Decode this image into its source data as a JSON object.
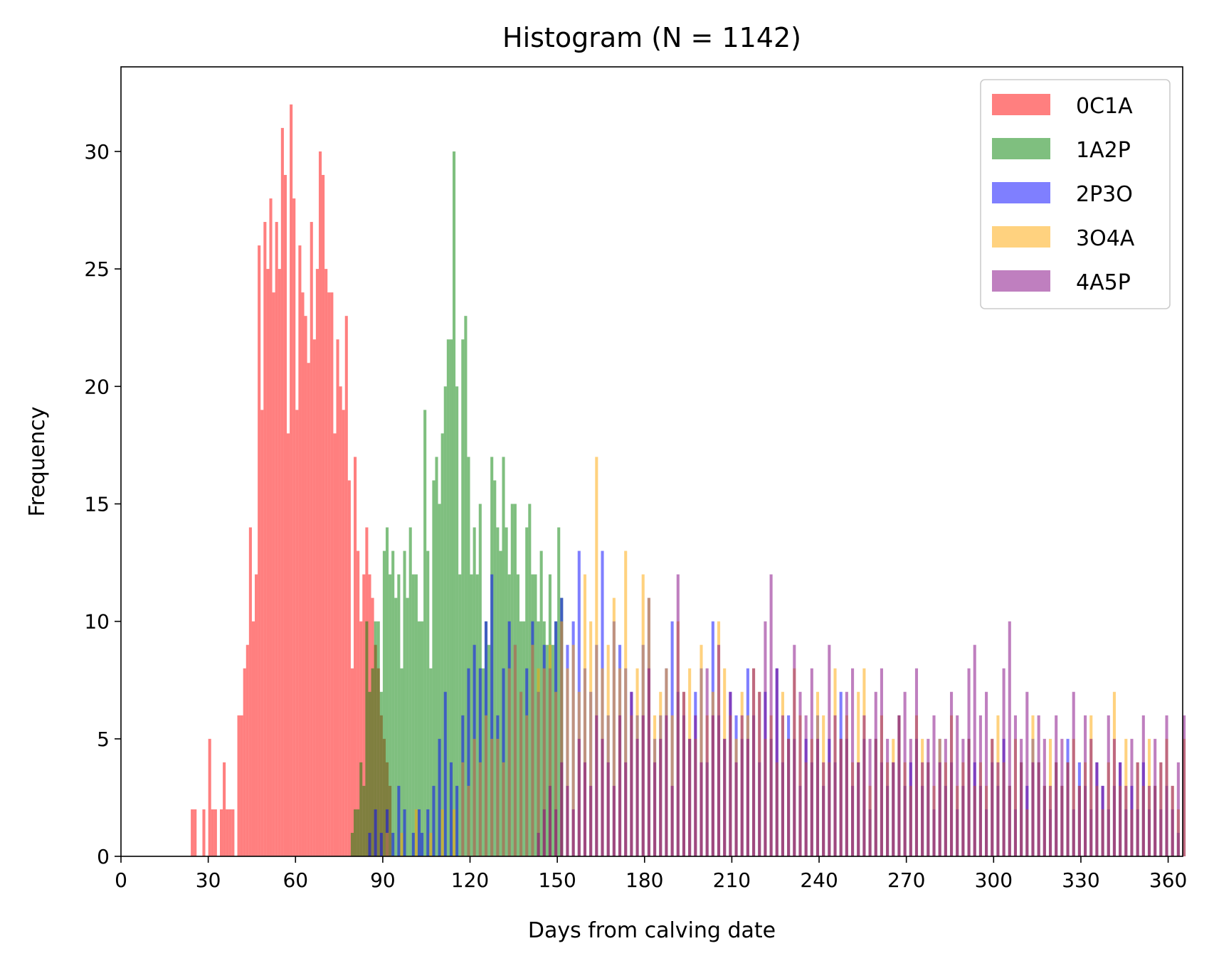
{
  "chart_data": {
    "type": "bar",
    "title": "Histogram (N = 1142)",
    "xlabel": "Days from calving date",
    "ylabel": "Frequency",
    "xlim": [
      0,
      365
    ],
    "ylim": [
      0,
      33.6
    ],
    "xticks": [
      0,
      30,
      60,
      90,
      120,
      150,
      180,
      210,
      240,
      270,
      300,
      330,
      360
    ],
    "yticks": [
      0,
      5,
      10,
      15,
      20,
      25,
      30
    ],
    "bin_width": 1,
    "grid": false,
    "legend_position": "top-right",
    "bar_opacity": 0.5,
    "series": [
      {
        "name": "0C1A",
        "color": "#ff0000",
        "x": [
          24,
          25,
          28,
          30,
          31,
          32,
          34,
          35,
          36,
          37,
          38,
          40,
          41,
          42,
          43,
          44,
          45,
          46,
          47,
          48,
          49,
          50,
          51,
          52,
          53,
          54,
          55,
          56,
          57,
          58,
          59,
          60,
          61,
          62,
          63,
          64,
          65,
          66,
          67,
          68,
          69,
          70,
          71,
          72,
          73,
          74,
          75,
          76,
          77,
          78,
          79,
          80,
          81,
          82,
          83,
          84,
          85,
          86,
          87,
          88,
          89,
          90,
          91,
          92
        ],
        "values": [
          2,
          2,
          2,
          5,
          2,
          2,
          2,
          4,
          2,
          2,
          2,
          6,
          6,
          8,
          9,
          14,
          10,
          12,
          26,
          19,
          27,
          25,
          28,
          24,
          27,
          25,
          31,
          29,
          18,
          32,
          28,
          19,
          26,
          24,
          23,
          21,
          27,
          22,
          25,
          30,
          29,
          25,
          24,
          24,
          18,
          22,
          20,
          19,
          23,
          16,
          8,
          17,
          13,
          10,
          12,
          14,
          12,
          11,
          9,
          8,
          6,
          5,
          4,
          3
        ]
      },
      {
        "name": "1A2P",
        "color": "#008000",
        "x": [
          79,
          80,
          81,
          82,
          83,
          84,
          85,
          86,
          87,
          88,
          89,
          90,
          91,
          92,
          93,
          94,
          95,
          96,
          97,
          98,
          99,
          100,
          101,
          102,
          103,
          104,
          105,
          106,
          107,
          108,
          109,
          110,
          111,
          112,
          113,
          114,
          115,
          116,
          117,
          118,
          119,
          120,
          121,
          122,
          123,
          124,
          125,
          126,
          127,
          128,
          129,
          130,
          131,
          132,
          133,
          134,
          135,
          136,
          137,
          138,
          139,
          140,
          141,
          142,
          143,
          144,
          145,
          146,
          147,
          148,
          149,
          150,
          151
        ],
        "values": [
          1,
          2,
          2,
          4,
          3,
          10,
          7,
          8,
          10,
          10,
          7,
          13,
          14,
          12,
          13,
          11,
          12,
          8,
          13,
          11,
          14,
          12,
          12,
          10,
          10,
          19,
          13,
          8,
          16,
          17,
          15,
          18,
          20,
          22,
          22,
          30,
          20,
          12,
          22,
          23,
          17,
          12,
          14,
          12,
          15,
          8,
          10,
          9,
          17,
          16,
          14,
          13,
          17,
          14,
          12,
          15,
          15,
          12,
          10,
          10,
          14,
          15,
          12,
          12,
          10,
          13,
          10,
          9,
          12,
          9,
          10,
          14,
          11
        ]
      },
      {
        "name": "2P3O",
        "color": "#0000ff",
        "x": [
          85,
          87,
          89,
          91,
          93,
          95,
          97,
          100,
          102,
          103,
          105,
          107,
          109,
          111,
          113,
          115,
          117,
          119,
          121,
          123,
          125,
          127,
          129,
          131,
          133,
          135,
          137,
          139,
          141,
          143,
          145,
          147,
          149,
          151,
          153,
          155,
          157,
          159,
          161,
          163,
          165,
          167,
          169,
          171,
          173,
          175,
          177,
          179,
          181,
          183,
          185,
          187,
          189,
          191,
          193,
          195,
          197,
          199,
          201,
          203,
          205,
          207,
          209,
          211,
          213,
          215,
          217,
          219,
          221,
          223,
          225,
          227,
          229,
          231,
          233,
          235,
          237,
          239,
          241,
          243,
          245,
          247,
          249,
          251,
          253,
          255,
          257,
          259,
          261,
          263,
          265,
          267,
          269,
          271,
          273,
          275,
          277,
          279,
          281,
          283,
          285,
          287,
          289,
          291,
          293,
          295,
          297,
          299,
          301,
          303,
          305,
          307,
          309,
          311,
          313,
          315,
          317,
          319,
          321,
          323,
          325,
          327,
          329,
          331,
          333,
          335,
          337,
          339,
          341,
          343,
          345,
          347,
          349,
          351,
          353,
          355,
          357,
          359,
          361,
          363
        ],
        "values": [
          1,
          2,
          1,
          2,
          1,
          3,
          2,
          1,
          2,
          1,
          2,
          3,
          5,
          7,
          4,
          3,
          6,
          8,
          9,
          8,
          10,
          12,
          6,
          8,
          10,
          9,
          7,
          8,
          10,
          7,
          9,
          8,
          10,
          11,
          9,
          10,
          13,
          8,
          7,
          9,
          13,
          6,
          10,
          9,
          8,
          7,
          6,
          9,
          11,
          5,
          6,
          8,
          10,
          7,
          6,
          5,
          7,
          8,
          4,
          10,
          6,
          5,
          7,
          6,
          5,
          8,
          6,
          4,
          7,
          5,
          8,
          4,
          6,
          5,
          3,
          5,
          4,
          6,
          3,
          5,
          4,
          7,
          5,
          3,
          4,
          5,
          2,
          5,
          4,
          3,
          4,
          6,
          3,
          4,
          5,
          3,
          4,
          2,
          5,
          3,
          4,
          2,
          3,
          5,
          4,
          3,
          2,
          4,
          3,
          5,
          3,
          2,
          4,
          3,
          5,
          4,
          3,
          2,
          4,
          3,
          5,
          2,
          4,
          3,
          2,
          4,
          3,
          2,
          3,
          4,
          2,
          3,
          2,
          4,
          2,
          3,
          2,
          3,
          2,
          1
        ]
      },
      {
        "name": "3O4A",
        "color": "#ffa500",
        "x": [
          91,
          96,
          101,
          106,
          110,
          114,
          117,
          119,
          121,
          123,
          125,
          127,
          129,
          131,
          133,
          135,
          137,
          139,
          141,
          143,
          145,
          147,
          149,
          151,
          153,
          155,
          157,
          159,
          161,
          163,
          165,
          167,
          169,
          171,
          173,
          175,
          177,
          179,
          181,
          183,
          185,
          187,
          189,
          191,
          193,
          195,
          197,
          199,
          201,
          203,
          205,
          207,
          209,
          211,
          213,
          215,
          217,
          219,
          221,
          223,
          225,
          227,
          229,
          231,
          233,
          235,
          237,
          239,
          241,
          243,
          245,
          247,
          249,
          251,
          253,
          255,
          257,
          259,
          261,
          263,
          265,
          267,
          269,
          271,
          273,
          275,
          277,
          279,
          281,
          283,
          285,
          287,
          289,
          291,
          293,
          295,
          297,
          299,
          301,
          303,
          305,
          307,
          309,
          311,
          313,
          315,
          317,
          319,
          321,
          323,
          325,
          327,
          329,
          331,
          333,
          335,
          337,
          339,
          341,
          343,
          345,
          347,
          349,
          351,
          353,
          355,
          357,
          359,
          361,
          363,
          365
        ],
        "values": [
          1,
          1,
          2,
          1,
          2,
          2,
          4,
          3,
          5,
          4,
          6,
          5,
          5,
          4,
          8,
          9,
          7,
          6,
          9,
          8,
          8,
          9,
          7,
          10,
          8,
          9,
          7,
          12,
          10,
          17,
          8,
          9,
          11,
          8,
          13,
          6,
          8,
          12,
          11,
          6,
          7,
          8,
          6,
          10,
          7,
          8,
          5,
          9,
          6,
          7,
          10,
          8,
          6,
          5,
          7,
          6,
          8,
          7,
          5,
          6,
          4,
          7,
          5,
          8,
          6,
          4,
          5,
          7,
          6,
          4,
          8,
          5,
          6,
          4,
          7,
          8,
          3,
          5,
          6,
          4,
          5,
          6,
          4,
          3,
          6,
          5,
          4,
          3,
          5,
          4,
          6,
          3,
          4,
          5,
          3,
          4,
          3,
          5,
          6,
          4,
          3,
          5,
          4,
          2,
          6,
          4,
          3,
          5,
          4,
          3,
          4,
          5,
          3,
          4,
          6,
          3,
          2,
          4,
          7,
          3,
          5,
          2,
          4,
          3,
          5,
          3,
          4,
          5,
          3,
          2,
          5
        ]
      },
      {
        "name": "4A5P",
        "color": "#800080",
        "x": [
          143,
          145,
          147,
          149,
          151,
          153,
          155,
          157,
          159,
          161,
          163,
          165,
          167,
          169,
          171,
          173,
          175,
          177,
          179,
          181,
          183,
          185,
          187,
          189,
          191,
          193,
          195,
          197,
          199,
          201,
          203,
          205,
          207,
          209,
          211,
          213,
          215,
          217,
          219,
          221,
          223,
          225,
          227,
          229,
          231,
          233,
          235,
          237,
          239,
          241,
          243,
          245,
          247,
          249,
          251,
          253,
          255,
          257,
          259,
          261,
          263,
          265,
          267,
          269,
          271,
          273,
          275,
          277,
          279,
          281,
          283,
          285,
          287,
          289,
          291,
          293,
          295,
          297,
          299,
          301,
          303,
          305,
          307,
          309,
          311,
          313,
          315,
          317,
          319,
          321,
          323,
          325,
          327,
          329,
          331,
          333,
          335,
          337,
          339,
          341,
          343,
          345,
          347,
          349,
          351,
          353,
          355,
          357,
          359,
          361,
          363,
          365
        ],
        "values": [
          1,
          2,
          3,
          2,
          4,
          3,
          2,
          5,
          4,
          3,
          6,
          5,
          4,
          3,
          6,
          4,
          7,
          5,
          6,
          8,
          4,
          5,
          6,
          3,
          12,
          7,
          5,
          6,
          4,
          8,
          6,
          9,
          5,
          7,
          4,
          6,
          5,
          8,
          7,
          10,
          12,
          8,
          6,
          5,
          9,
          7,
          6,
          8,
          5,
          4,
          9,
          6,
          5,
          7,
          8,
          4,
          6,
          5,
          7,
          8,
          5,
          4,
          6,
          7,
          5,
          8,
          4,
          5,
          6,
          4,
          5,
          7,
          6,
          5,
          8,
          9,
          6,
          7,
          5,
          4,
          8,
          10,
          6,
          5,
          7,
          4,
          6,
          5,
          3,
          6,
          5,
          4,
          7,
          3,
          6,
          5,
          4,
          3,
          6,
          5,
          4,
          3,
          5,
          4,
          6,
          3,
          5,
          4,
          6,
          3,
          4,
          6
        ]
      }
    ]
  }
}
